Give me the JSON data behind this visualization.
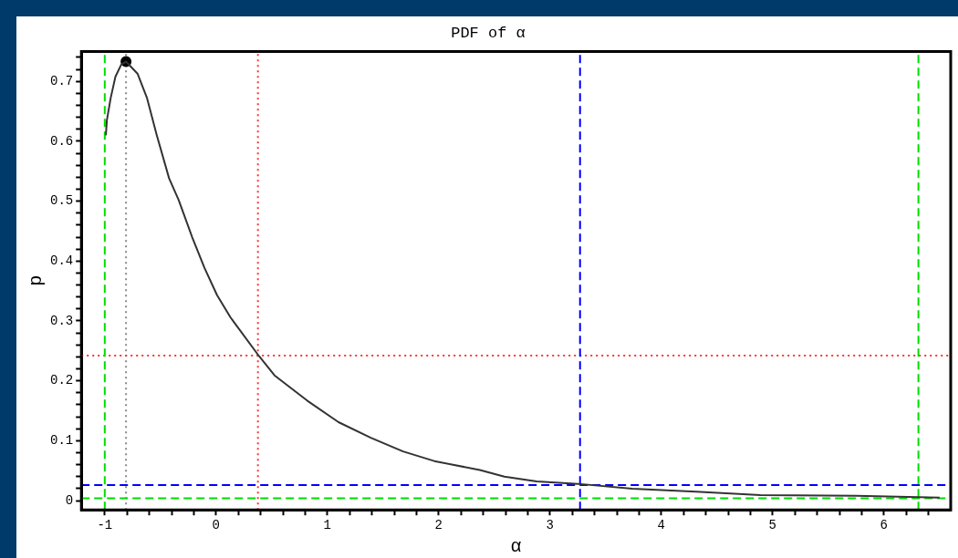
{
  "chart_data": {
    "type": "line",
    "title": "PDF of α",
    "xlabel": "α",
    "ylabel": "p",
    "xlim": [
      -1.21,
      6.6
    ],
    "ylim": [
      -0.0155,
      0.75
    ],
    "xticks": [
      -1,
      {
        "value": -0.8,
        "label": null
      },
      {
        "value": -0.6,
        "label": null
      },
      {
        "value": -0.4,
        "label": null
      },
      {
        "value": -0.2,
        "label": null
      },
      0,
      {
        "value": 0.2,
        "label": null
      },
      {
        "value": 0.4,
        "label": null
      },
      {
        "value": 0.6,
        "label": null
      },
      {
        "value": 0.8,
        "label": null
      },
      1,
      {
        "value": 1.2,
        "label": null
      },
      {
        "value": 1.4,
        "label": null
      },
      {
        "value": 1.6,
        "label": null
      },
      {
        "value": 1.8,
        "label": null
      },
      2,
      {
        "value": 2.2,
        "label": null
      },
      {
        "value": 2.4,
        "label": null
      },
      {
        "value": 2.6,
        "label": null
      },
      {
        "value": 2.8,
        "label": null
      },
      3,
      {
        "value": 3.2,
        "label": null
      },
      {
        "value": 3.4,
        "label": null
      },
      {
        "value": 3.6,
        "label": null
      },
      {
        "value": 3.8,
        "label": null
      },
      4,
      {
        "value": 4.2,
        "label": null
      },
      {
        "value": 4.4,
        "label": null
      },
      {
        "value": 4.6,
        "label": null
      },
      {
        "value": 4.8,
        "label": null
      },
      5,
      {
        "value": 5.2,
        "label": null
      },
      {
        "value": 5.4,
        "label": null
      },
      {
        "value": 5.6,
        "label": null
      },
      {
        "value": 5.8,
        "label": null
      },
      6,
      {
        "value": 6.2,
        "label": null
      },
      {
        "value": 6.4,
        "label": null
      }
    ],
    "yticks": [
      0,
      {
        "value": 0.02,
        "label": null
      },
      {
        "value": 0.04,
        "label": null
      },
      {
        "value": 0.06,
        "label": null
      },
      {
        "value": 0.08,
        "label": null
      },
      0.1,
      {
        "value": 0.12,
        "label": null
      },
      {
        "value": 0.14,
        "label": null
      },
      {
        "value": 0.16,
        "label": null
      },
      {
        "value": 0.18,
        "label": null
      },
      0.2,
      {
        "value": 0.22,
        "label": null
      },
      {
        "value": 0.24,
        "label": null
      },
      {
        "value": 0.26,
        "label": null
      },
      {
        "value": 0.28,
        "label": null
      },
      0.3,
      {
        "value": 0.32,
        "label": null
      },
      {
        "value": 0.34,
        "label": null
      },
      {
        "value": 0.36,
        "label": null
      },
      {
        "value": 0.38,
        "label": null
      },
      0.4,
      {
        "value": 0.42,
        "label": null
      },
      {
        "value": 0.44,
        "label": null
      },
      {
        "value": 0.46,
        "label": null
      },
      {
        "value": 0.48,
        "label": null
      },
      0.5,
      {
        "value": 0.52,
        "label": null
      },
      {
        "value": 0.54,
        "label": null
      },
      {
        "value": 0.56,
        "label": null
      },
      {
        "value": 0.58,
        "label": null
      },
      0.6,
      {
        "value": 0.62,
        "label": null
      },
      {
        "value": 0.64,
        "label": null
      },
      {
        "value": 0.66,
        "label": null
      },
      {
        "value": 0.68,
        "label": null
      },
      0.7,
      {
        "value": 0.72,
        "label": null
      },
      {
        "value": 0.74,
        "label": null
      }
    ],
    "grid": false,
    "legend": false,
    "series": [
      {
        "color": "#333333",
        "marker": "none",
        "x": [
          -0.99,
          -0.981,
          -0.947,
          -0.904,
          -0.852,
          -0.809,
          -0.706,
          -0.62,
          -0.534,
          -0.422,
          -0.336,
          -0.215,
          -0.103,
          0.009,
          0.129,
          0.387,
          0.525,
          0.818,
          1.1,
          1.39,
          1.68,
          1.96,
          2.37,
          2.59,
          2.88,
          3.25,
          3.74,
          4.31,
          4.89,
          5.75,
          6.5
        ],
        "values": [
          0.61,
          0.635,
          0.672,
          0.708,
          0.728,
          0.733,
          0.713,
          0.672,
          0.611,
          0.538,
          0.502,
          0.44,
          0.388,
          0.343,
          0.306,
          0.241,
          0.209,
          0.167,
          0.131,
          0.105,
          0.082,
          0.066,
          0.051,
          0.04,
          0.032,
          0.028,
          0.02,
          0.015,
          0.009,
          0.008,
          0.005
        ]
      },
      {
        "type": "scatter",
        "color": "#000000",
        "marker": "circle",
        "x": [
          -0.809
        ],
        "values": [
          0.733
        ]
      }
    ],
    "ref_lines": [
      {
        "axis": "x",
        "value": -0.809,
        "color": "#888888",
        "line_style": "dotted"
      },
      {
        "axis": "x",
        "value": 0.376,
        "color": "#ff3333",
        "line_style": "dotted"
      },
      {
        "axis": "y",
        "value": 0.242,
        "color": "#ff3333",
        "line_style": "dotted"
      },
      {
        "axis": "x",
        "value": 3.27,
        "color": "#0000ff",
        "line_style": "dashed"
      },
      {
        "axis": "y",
        "value": 0.026,
        "color": "#0000ff",
        "line_style": "dashed"
      },
      {
        "axis": "x",
        "value": -1,
        "color": "#00dd00",
        "line_style": "dashed"
      },
      {
        "axis": "x",
        "value": 6.31,
        "color": "#00dd00",
        "line_style": "dashed"
      },
      {
        "axis": "y",
        "value": 0.004,
        "color": "#00dd00",
        "line_style": "dashed"
      }
    ]
  }
}
